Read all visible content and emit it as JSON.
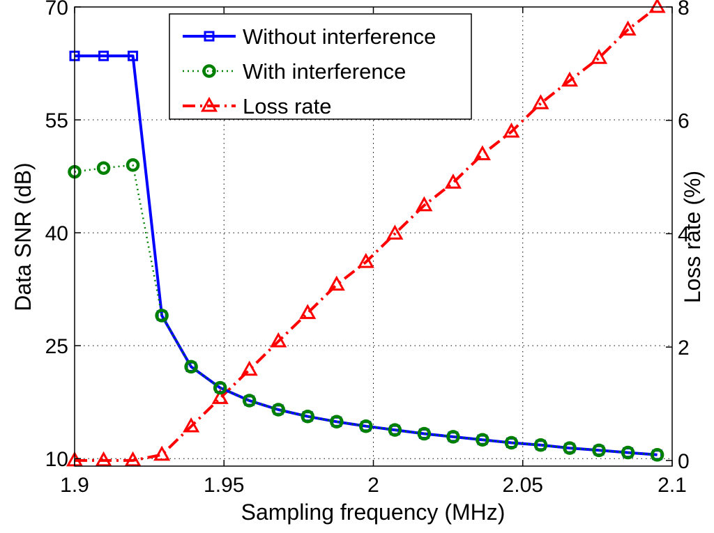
{
  "chart_data": {
    "type": "line",
    "title": "",
    "xlabel": "Sampling frequency (MHz)",
    "ylabel": "Data SNR (dB)",
    "y2label": "Loss rate (%)",
    "xlim": [
      1.9,
      2.1
    ],
    "ylim": [
      9,
      70
    ],
    "y2lim": [
      -0.1,
      8
    ],
    "xticks": [
      1.9,
      1.95,
      2,
      2.05,
      2.1
    ],
    "xtick_labels": [
      "1.9",
      "1.95",
      "2",
      "2.05",
      "2.1"
    ],
    "yticks": [
      10,
      25,
      40,
      55,
      70
    ],
    "ytick_labels": [
      "10",
      "25",
      "40",
      "55",
      "70"
    ],
    "y2ticks": [
      0,
      2,
      4,
      6,
      8
    ],
    "y2tick_labels": [
      "0",
      "2",
      "4",
      "6",
      "8"
    ],
    "grid": true,
    "legend_position": "top-center",
    "x": [
      1.9,
      1.9097,
      1.9195,
      1.9292,
      1.939,
      1.9487,
      1.9585,
      1.9682,
      1.978,
      1.9877,
      1.9975,
      2.0072,
      2.017,
      2.0267,
      2.0365,
      2.0462,
      2.056,
      2.0657,
      2.0755,
      2.0852,
      2.095
    ],
    "series": [
      {
        "name": "Without interference",
        "axis": "left",
        "style": "solid",
        "marker": "square",
        "color": "#0000ff",
        "values": [
          63.5,
          63.5,
          63.5,
          29,
          22.2,
          19.4,
          17.7,
          16.5,
          15.6,
          14.9,
          14.3,
          13.8,
          13.3,
          12.9,
          12.5,
          12.1,
          11.8,
          11.4,
          11.1,
          10.8,
          10.5
        ]
      },
      {
        "name": "With interference",
        "axis": "left",
        "style": "dotted",
        "marker": "circle",
        "color": "#008000",
        "values": [
          48.1,
          48.6,
          49,
          29,
          22.2,
          19.4,
          17.7,
          16.5,
          15.6,
          14.9,
          14.3,
          13.8,
          13.3,
          12.9,
          12.5,
          12.1,
          11.8,
          11.4,
          11.1,
          10.8,
          10.5
        ]
      },
      {
        "name": "Loss rate",
        "axis": "right",
        "style": "dashdot",
        "marker": "triangle",
        "color": "#ff0000",
        "values": [
          0,
          0,
          0,
          0.1,
          0.6,
          1.1,
          1.6,
          2.1,
          2.6,
          3.1,
          3.5,
          4.0,
          4.5,
          4.9,
          5.4,
          5.8,
          6.3,
          6.7,
          7.1,
          7.6,
          8.0
        ]
      }
    ]
  }
}
